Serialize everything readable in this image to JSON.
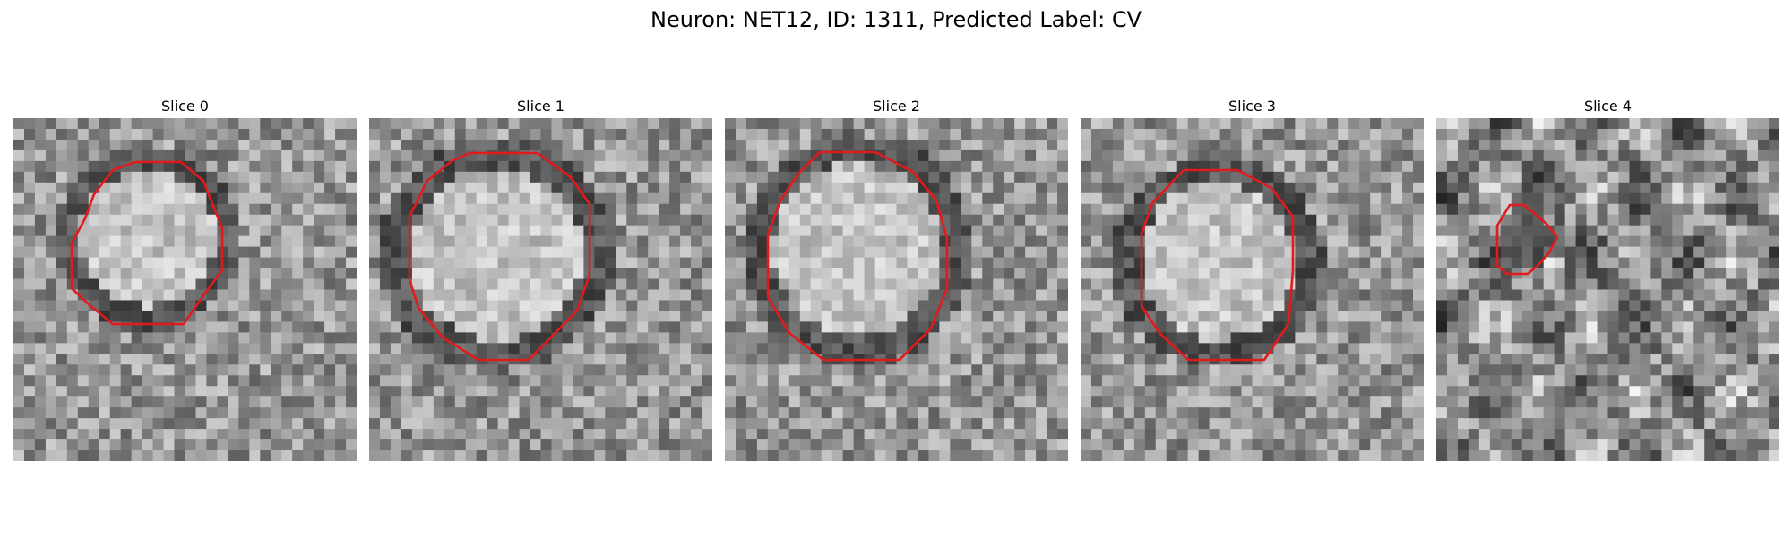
{
  "figure": {
    "title": "Neuron: NET12, ID: 1311, Predicted Label: CV"
  },
  "panels": [
    {
      "title": "Slice 0",
      "seed": 11,
      "contour": "octagon-large"
    },
    {
      "title": "Slice 1",
      "seed": 23,
      "contour": "octagon-large"
    },
    {
      "title": "Slice 2",
      "seed": 37,
      "contour": "octagon-large"
    },
    {
      "title": "Slice 3",
      "seed": 41,
      "contour": "octagon-large"
    },
    {
      "title": "Slice 4",
      "seed": 59,
      "contour": "octagon-small"
    }
  ],
  "colors": {
    "contour": "#e31a1c"
  }
}
